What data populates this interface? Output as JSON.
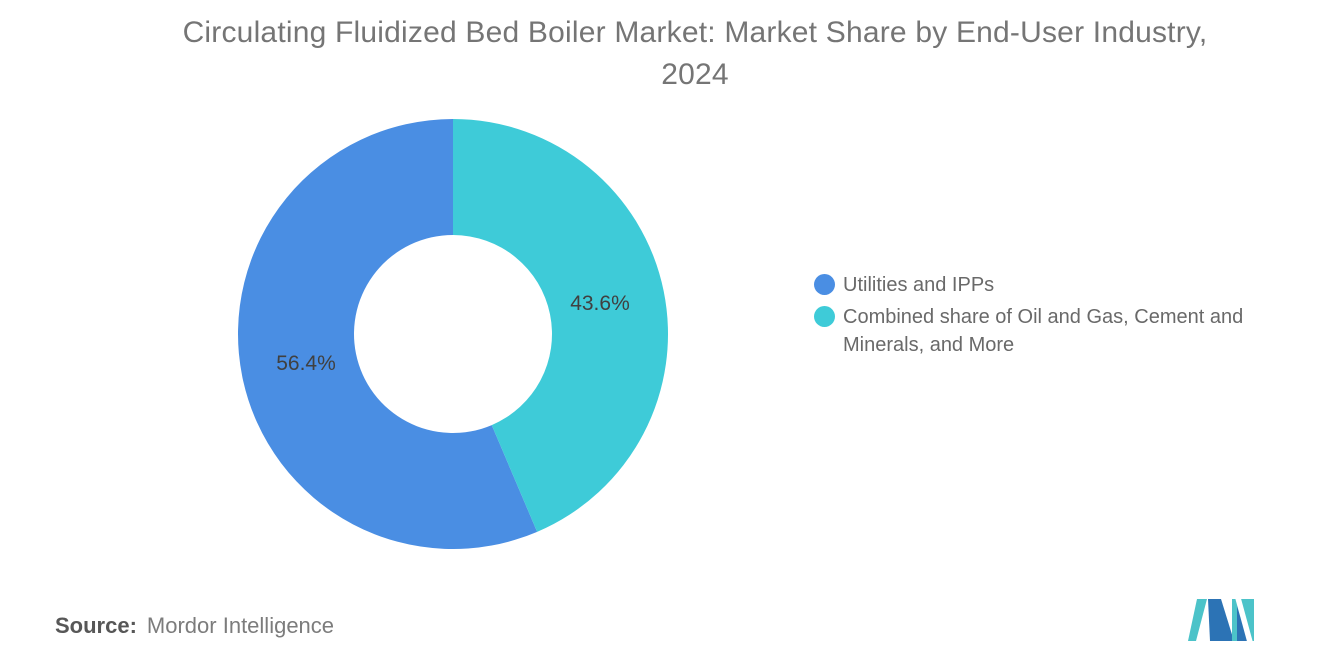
{
  "title": {
    "line1": "Circulating Fluidized Bed Boiler Market: Market Share by End-User Industry,",
    "line2": "2024"
  },
  "chart_data": {
    "type": "pie",
    "donut": true,
    "title": "Circulating Fluidized Bed Boiler Market: Market Share by End-User Industry, 2024",
    "labels": [
      "Utilities and IPPs",
      "Combined share of Oil and Gas, Cement and Minerals, and More"
    ],
    "values": [
      56.4,
      43.6
    ],
    "slice_labels": [
      "56.4%",
      "43.6%"
    ],
    "unit": "%",
    "colors": [
      "#4a8ee3",
      "#3ecbd8"
    ],
    "start_angle_deg": 0,
    "direction": "counterclockwise",
    "inner_radius_ratio": 0.46,
    "slice_label_color": "#404040",
    "legend_position": "right",
    "background": "#ffffff"
  },
  "source": {
    "label": "Source:",
    "value": "Mordor Intelligence"
  },
  "logo": {
    "alt": "mordor-intelligence-logo",
    "colors": {
      "teal": "#4cc3c9",
      "blue": "#2c73b5"
    }
  }
}
